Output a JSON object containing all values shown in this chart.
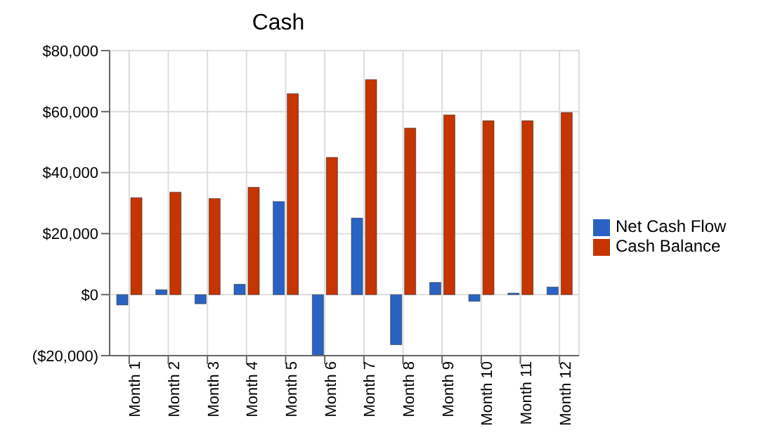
{
  "chart_data": {
    "type": "bar",
    "title": "Cash",
    "categories": [
      "Month 1",
      "Month 2",
      "Month 3",
      "Month 4",
      "Month 5",
      "Month 6",
      "Month 7",
      "Month 8",
      "Month 9",
      "Month 10",
      "Month 11",
      "Month 12"
    ],
    "series": [
      {
        "name": "Net Cash Flow",
        "color": "#2a62c4",
        "values": [
          -3400,
          1600,
          -3000,
          3400,
          30500,
          -20000,
          25100,
          -16400,
          4000,
          -2200,
          500,
          2500
        ]
      },
      {
        "name": "Cash Balance",
        "color": "#c43500",
        "values": [
          31800,
          33600,
          31500,
          35200,
          65900,
          45000,
          70500,
          54600,
          58900,
          57000,
          57000,
          59700
        ]
      }
    ],
    "ylim": [
      -20000,
      80000
    ],
    "yticks": [
      {
        "value": -20000,
        "label": "($20,000)"
      },
      {
        "value": 0,
        "label": "$0"
      },
      {
        "value": 20000,
        "label": "$20,000"
      },
      {
        "value": 40000,
        "label": "$40,000"
      },
      {
        "value": 60000,
        "label": "$60,000"
      },
      {
        "value": 80000,
        "label": "$80,000"
      }
    ],
    "grid": true,
    "legend": "right"
  }
}
